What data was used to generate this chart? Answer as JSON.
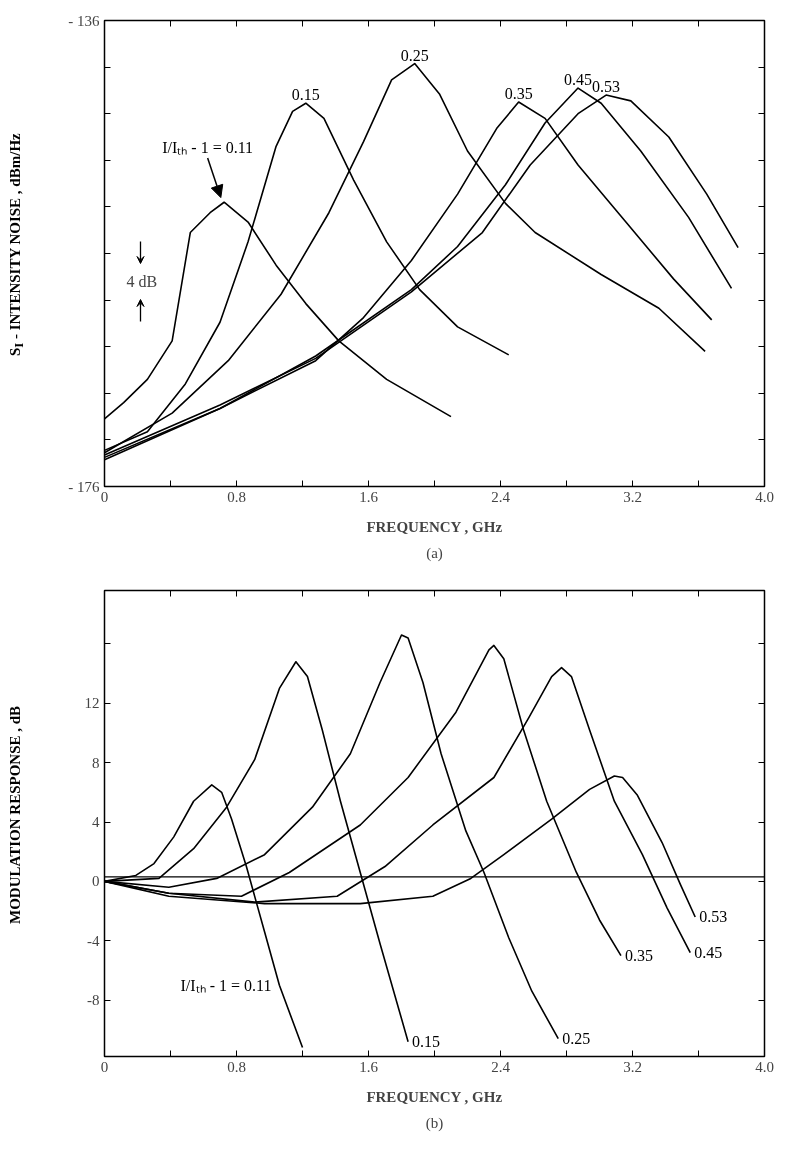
{
  "chart_data": [
    {
      "type": "line",
      "xlabel": "FREQUENCY , GHz",
      "ylabel": "S$_{I}$ - INTENSITY NOISE , dBm/Hz",
      "xlim": [
        0,
        4.0
      ],
      "ylim": [
        -176,
        -136
      ],
      "xticks": [
        0,
        {
          "value": 0.4,
          "label": null
        },
        0.8,
        {
          "value": 1.2,
          "label": null
        },
        1.6,
        {
          "value": 2.0,
          "label": null
        },
        2.4,
        {
          "value": 2.8,
          "label": null
        },
        3.2,
        {
          "value": 3.6,
          "label": null
        },
        {
          "value": 4.0,
          "label": "4.0"
        }
      ],
      "yticks": [
        {
          "value": -176,
          "label": "- 176"
        },
        {
          "value": -172,
          "label": null
        },
        {
          "value": -168,
          "label": null
        },
        {
          "value": -164,
          "label": null
        },
        {
          "value": -160,
          "label": null
        },
        {
          "value": -156,
          "label": null
        },
        {
          "value": -152,
          "label": null
        },
        {
          "value": -148,
          "label": null
        },
        {
          "value": -144,
          "label": null
        },
        {
          "value": -140,
          "label": null
        },
        {
          "value": -136,
          "label": "- 136"
        }
      ],
      "grid": false,
      "legend": false,
      "marker": "none",
      "line_style": "solid",
      "annotations": [
        "4 dB",
        "(a)"
      ],
      "series": [
        {
          "name": "I/Iₜₕ - 1 = 0.11",
          "color": "#000000",
          "x": [
            0,
            0.116,
            0.26,
            0.41,
            0.52,
            0.64,
            0.725,
            0.87,
            1.04,
            1.22,
            1.42,
            1.71,
            2.1
          ],
          "values": [
            -170.2,
            -168.8,
            -166.8,
            -163.5,
            -154.2,
            -152.5,
            -151.6,
            -153.3,
            -157.0,
            -160.3,
            -163.5,
            -166.8,
            -170.0
          ]
        },
        {
          "name": "0.15",
          "color": "#000000",
          "x": [
            0,
            0.26,
            0.49,
            0.7,
            0.87,
            1.04,
            1.14,
            1.22,
            1.33,
            1.51,
            1.71,
            1.91,
            2.14,
            2.45
          ],
          "values": [
            -172.9,
            -171.3,
            -167.2,
            -161.9,
            -155.0,
            -146.8,
            -143.8,
            -143.1,
            -144.4,
            -149.7,
            -155.0,
            -159.1,
            -162.3,
            -164.7
          ]
        },
        {
          "name": "0.25",
          "color": "#000000",
          "x": [
            0,
            0.41,
            0.75,
            1.07,
            1.36,
            1.57,
            1.74,
            1.88,
            2.03,
            2.2,
            2.43,
            2.61,
            3.01,
            3.36,
            3.64
          ],
          "values": [
            -173.1,
            -169.7,
            -165.2,
            -159.5,
            -152.5,
            -146.4,
            -141.1,
            -139.7,
            -142.3,
            -147.2,
            -151.7,
            -154.2,
            -157.8,
            -160.7,
            -164.4
          ]
        },
        {
          "name": "0.35",
          "color": "#000000",
          "x": [
            0,
            0.7,
            1.28,
            1.57,
            1.86,
            2.14,
            2.38,
            2.51,
            2.67,
            2.87,
            3.16,
            3.45,
            3.68
          ],
          "values": [
            -173.5,
            -169.3,
            -165.2,
            -161.5,
            -156.6,
            -150.9,
            -145.2,
            -143.0,
            -144.4,
            -148.4,
            -153.3,
            -158.2,
            -161.7
          ]
        },
        {
          "name": "0.45",
          "color": "#000000",
          "x": [
            0,
            0.7,
            1.28,
            1.86,
            2.14,
            2.43,
            2.67,
            2.87,
            3.01,
            3.25,
            3.54,
            3.8
          ],
          "values": [
            -173.7,
            -169.3,
            -164.8,
            -159.1,
            -155.4,
            -150.1,
            -144.8,
            -141.8,
            -143.1,
            -147.2,
            -152.9,
            -159.0
          ]
        },
        {
          "name": "0.53",
          "color": "#000000",
          "x": [
            0,
            0.7,
            1.28,
            1.86,
            2.29,
            2.58,
            2.87,
            3.04,
            3.19,
            3.42,
            3.65,
            3.84
          ],
          "values": [
            -173.3,
            -169.0,
            -165.0,
            -159.3,
            -154.2,
            -148.4,
            -144.0,
            -142.4,
            -142.9,
            -146.0,
            -150.9,
            -155.5
          ]
        }
      ]
    },
    {
      "type": "line",
      "xlabel": "FREQUENCY , GHz",
      "ylabel": "MODULATION RESPONSE , dB",
      "xlim": [
        0,
        4.0
      ],
      "ylim": [
        -11.8,
        19.6
      ],
      "xticks": [
        0,
        {
          "value": 0.4,
          "label": null
        },
        0.8,
        {
          "value": 1.2,
          "label": null
        },
        1.6,
        {
          "value": 2.0,
          "label": null
        },
        2.4,
        {
          "value": 2.8,
          "label": null
        },
        3.2,
        {
          "value": 3.6,
          "label": null
        },
        {
          "value": 4.0,
          "label": "4.0"
        }
      ],
      "yticks": [
        -8,
        -4,
        0,
        4,
        8,
        12,
        {
          "value": 16,
          "label": null
        }
      ],
      "grid": false,
      "legend": false,
      "marker": "none",
      "line_style": "solid",
      "ref_lines": [
        {
          "axis": "y",
          "value": 0.3,
          "label": null
        }
      ],
      "annotations": [
        "(b)"
      ],
      "series": [
        {
          "name": "I/Iₜₕ - 1 = 0.11",
          "color": "#000000",
          "x": [
            0,
            0.19,
            0.3,
            0.42,
            0.54,
            0.65,
            0.71,
            0.77,
            0.86,
            0.97,
            1.06,
            1.2
          ],
          "values": [
            0,
            0.4,
            1.2,
            3.0,
            5.4,
            6.5,
            6.0,
            4.2,
            1.0,
            -3.4,
            -7.0,
            -11.2
          ]
        },
        {
          "name": "0.15",
          "color": "#000000",
          "x": [
            0,
            0.33,
            0.54,
            0.74,
            0.91,
            1.06,
            1.16,
            1.23,
            1.32,
            1.43,
            1.55,
            1.67,
            1.84
          ],
          "values": [
            0,
            0.2,
            2.2,
            5.0,
            8.2,
            13.0,
            14.8,
            13.8,
            10.2,
            5.4,
            0.6,
            -4.2,
            -10.8
          ]
        },
        {
          "name": "0.25",
          "color": "#000000",
          "x": [
            0,
            0.39,
            0.68,
            0.97,
            1.26,
            1.49,
            1.67,
            1.8,
            1.84,
            1.93,
            2.04,
            2.19,
            2.3,
            2.45,
            2.59,
            2.75
          ],
          "values": [
            0,
            -0.4,
            0.2,
            1.8,
            5.0,
            8.6,
            13.4,
            16.6,
            16.4,
            13.4,
            8.6,
            3.4,
            0.6,
            -3.8,
            -7.4,
            -10.6
          ]
        },
        {
          "name": "0.35",
          "color": "#000000",
          "x": [
            0,
            0.39,
            0.83,
            1.12,
            1.55,
            1.84,
            2.13,
            2.33,
            2.36,
            2.42,
            2.54,
            2.68,
            2.86,
            3.0,
            3.13
          ],
          "values": [
            0,
            -0.8,
            -1.0,
            0.6,
            3.8,
            7.0,
            11.4,
            15.6,
            15.9,
            15.0,
            10.2,
            5.4,
            0.6,
            -2.6,
            -5.0
          ]
        },
        {
          "name": "0.45",
          "color": "#000000",
          "x": [
            0,
            0.39,
            0.91,
            1.41,
            1.7,
            1.99,
            2.36,
            2.57,
            2.71,
            2.77,
            2.83,
            2.94,
            3.09,
            3.26,
            3.41,
            3.55
          ],
          "values": [
            0,
            -0.8,
            -1.4,
            -1.0,
            1.0,
            3.8,
            7.0,
            11.0,
            13.8,
            14.4,
            13.8,
            10.2,
            5.4,
            1.8,
            -1.8,
            -4.8
          ]
        },
        {
          "name": "0.53",
          "color": "#000000",
          "x": [
            0,
            0.39,
            0.97,
            1.55,
            1.99,
            2.22,
            2.42,
            2.71,
            2.94,
            3.09,
            3.14,
            3.23,
            3.38,
            3.49,
            3.58
          ],
          "values": [
            0,
            -1.0,
            -1.5,
            -1.5,
            -1.0,
            0.2,
            1.8,
            4.2,
            6.2,
            7.1,
            7.0,
            5.8,
            2.6,
            -0.2,
            -2.4
          ]
        }
      ]
    }
  ]
}
